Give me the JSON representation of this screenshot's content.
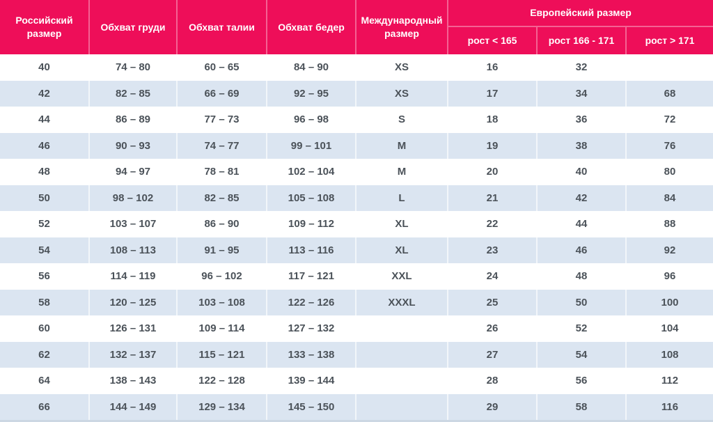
{
  "colors": {
    "header_bg": "#ee0e59",
    "header_text": "#ffffff",
    "row_bg": "#ffffff",
    "row_alt_bg": "#dbe5f1",
    "body_text": "#4b5259",
    "bottom_border": "#ccd7e3"
  },
  "table": {
    "headers": {
      "russian_size": "Российский размер",
      "chest": "Обхват груди",
      "waist": "Обхват талии",
      "hips": "Обхват бедер",
      "international_size": "Международный размер",
      "european_size_group": "Европейский размер",
      "height_lt_165": "рост < 165",
      "height_166_171": "рост 166 - 171",
      "height_gt_171": "рост > 171"
    },
    "rows": [
      [
        "40",
        "74 – 80",
        "60 – 65",
        "84 – 90",
        "XS",
        "16",
        "32",
        ""
      ],
      [
        "42",
        "82 – 85",
        "66 – 69",
        "92 – 95",
        "XS",
        "17",
        "34",
        "68"
      ],
      [
        "44",
        "86 – 89",
        "77 – 73",
        "96 – 98",
        "S",
        "18",
        "36",
        "72"
      ],
      [
        "46",
        "90 – 93",
        "74 – 77",
        "99 – 101",
        "M",
        "19",
        "38",
        "76"
      ],
      [
        "48",
        "94 – 97",
        "78 – 81",
        "102 – 104",
        "M",
        "20",
        "40",
        "80"
      ],
      [
        "50",
        "98 – 102",
        "82 – 85",
        "105 – 108",
        "L",
        "21",
        "42",
        "84"
      ],
      [
        "52",
        "103 – 107",
        "86 – 90",
        "109 – 112",
        "XL",
        "22",
        "44",
        "88"
      ],
      [
        "54",
        "108 – 113",
        "91 – 95",
        "113 – 116",
        "XL",
        "23",
        "46",
        "92"
      ],
      [
        "56",
        "114 – 119",
        "96 – 102",
        "117 – 121",
        "XXL",
        "24",
        "48",
        "96"
      ],
      [
        "58",
        "120 – 125",
        "103 – 108",
        "122 – 126",
        "XXXL",
        "25",
        "50",
        "100"
      ],
      [
        "60",
        "126 – 131",
        "109 – 114",
        "127 – 132",
        "",
        "26",
        "52",
        "104"
      ],
      [
        "62",
        "132 – 137",
        "115 – 121",
        "133 – 138",
        "",
        "27",
        "54",
        "108"
      ],
      [
        "64",
        "138 – 143",
        "122 – 128",
        "139 – 144",
        "",
        "28",
        "56",
        "112"
      ],
      [
        "66",
        "144 – 149",
        "129 – 134",
        "145 – 150",
        "",
        "29",
        "58",
        "116"
      ]
    ]
  }
}
